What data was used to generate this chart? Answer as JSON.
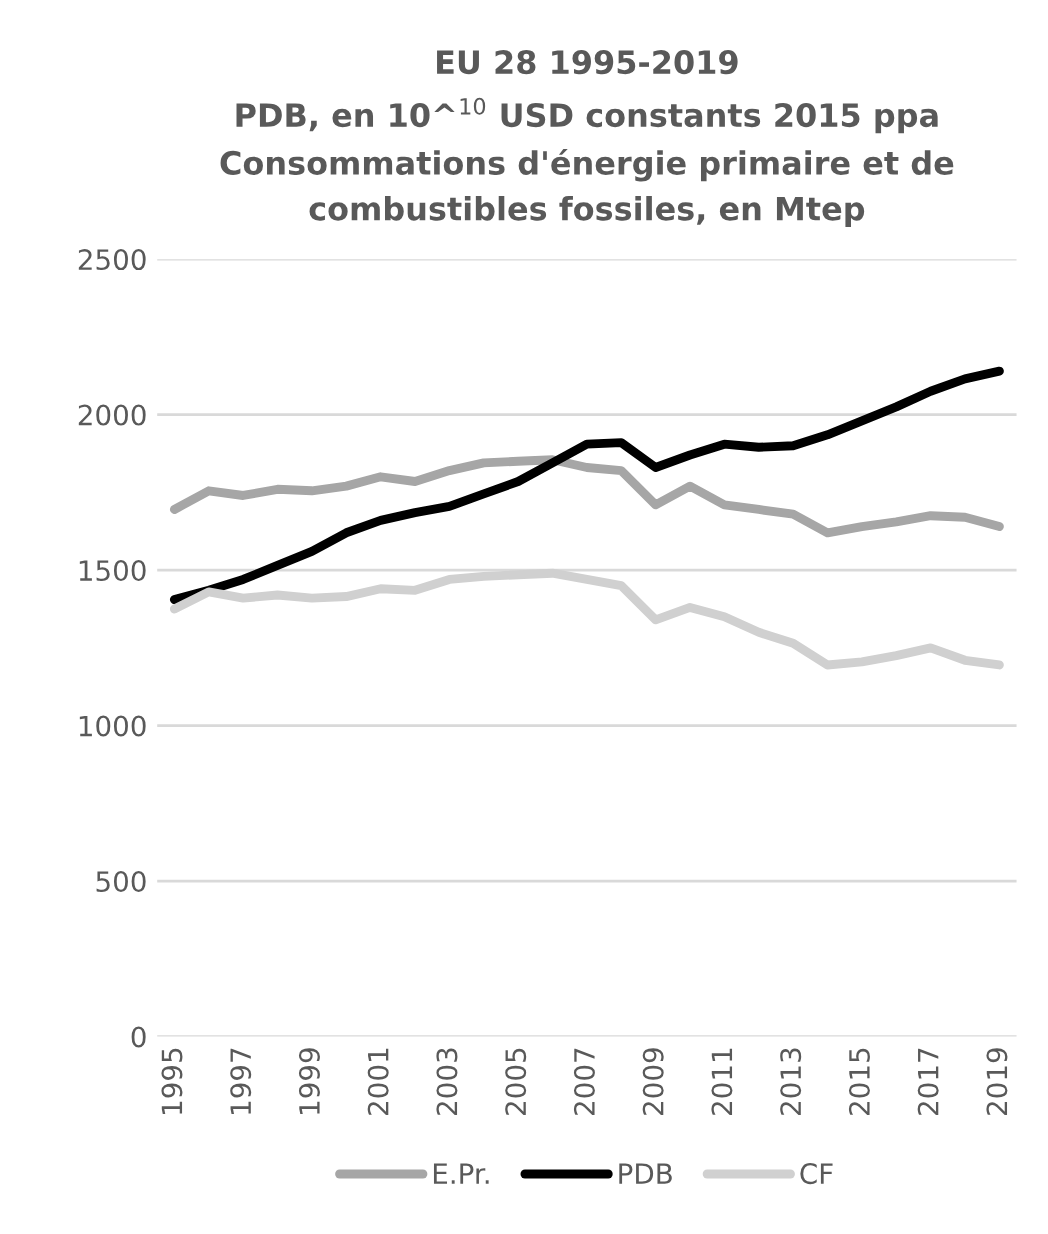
{
  "chart_data": {
    "type": "line",
    "title": "EU 28 1995-2019\nPDB, en 10^$^{10}$ USD constants 2015 ppa\nConsommations d'énergie primaire et de\ncombustibles fossiles, en Mtep",
    "categories": [
      "1995",
      null,
      "1997",
      null,
      "1999",
      null,
      "2001",
      null,
      "2003",
      null,
      "2005",
      null,
      "2007",
      null,
      "2009",
      null,
      "2011",
      null,
      "2013",
      null,
      "2015",
      null,
      "2017",
      null,
      "2019"
    ],
    "series": [
      {
        "name": "E.Pr.",
        "color": "#a6a6a6",
        "values": [
          1695,
          1755,
          1740,
          1760,
          1755,
          1770,
          1800,
          1785,
          1820,
          1845,
          1850,
          1855,
          1830,
          1820,
          1710,
          1770,
          1710,
          1695,
          1680,
          1620,
          1640,
          1655,
          1675,
          1670,
          1640
        ]
      },
      {
        "name": "PDB",
        "color": "#000000",
        "values": [
          1405,
          1435,
          1470,
          1515,
          1560,
          1620,
          1660,
          1685,
          1705,
          1745,
          1785,
          1845,
          1905,
          1910,
          1830,
          1870,
          1905,
          1895,
          1900,
          1935,
          1980,
          2025,
          2075,
          2115,
          2140
        ]
      },
      {
        "name": "CF",
        "color": "#d0d0d0",
        "values": [
          1375,
          1430,
          1410,
          1420,
          1410,
          1415,
          1440,
          1435,
          1470,
          1480,
          1485,
          1490,
          1470,
          1450,
          1340,
          1380,
          1350,
          1300,
          1265,
          1195,
          1205,
          1225,
          1250,
          1210,
          1195
        ]
      }
    ],
    "ylim": [
      0,
      2500
    ],
    "yticks": [
      0,
      500,
      1000,
      1500,
      2000,
      2500
    ],
    "grid": "y",
    "legend": "bottom",
    "marker": "none",
    "line_style": "solid"
  }
}
